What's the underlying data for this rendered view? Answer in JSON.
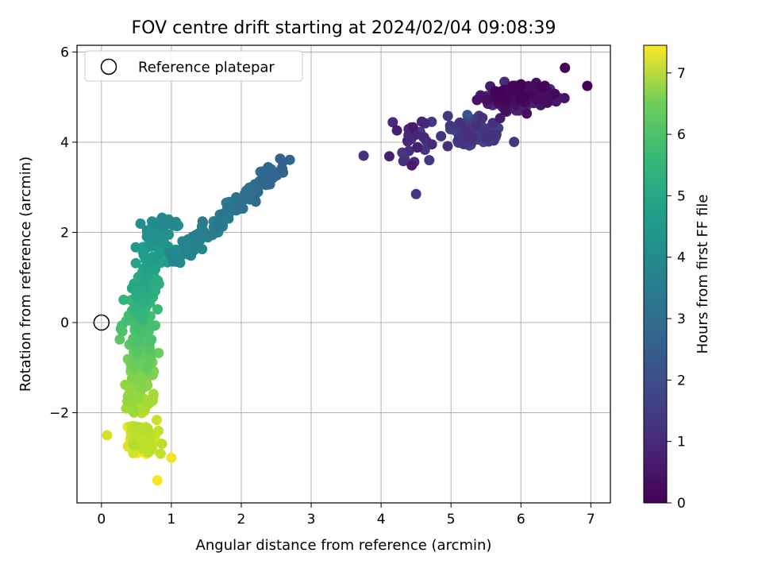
{
  "chart_data": {
    "type": "scatter",
    "title": "FOV centre drift starting at 2024/02/04 09:08:39",
    "xlabel": "Angular distance from reference (arcmin)",
    "ylabel": "Rotation from reference (arcmin)",
    "xlim": [
      -0.35,
      7.28
    ],
    "ylim": [
      -4.0,
      6.15
    ],
    "xticks": [
      0,
      1,
      2,
      3,
      4,
      5,
      6,
      7
    ],
    "xtick_labels": [
      "0",
      "1",
      "2",
      "3",
      "4",
      "5",
      "6",
      "7"
    ],
    "yticks": [
      -2,
      0,
      2,
      4,
      6
    ],
    "ytick_labels": [
      "−2",
      "0",
      "2",
      "4",
      "6"
    ],
    "grid": true,
    "legend": {
      "placement": "top-left",
      "entries": [
        "Reference platepar"
      ]
    },
    "reference_point": {
      "label": "Reference platepar",
      "x": 0.0,
      "y": 0.0
    },
    "colorbar": {
      "label": "Hours from first FF file",
      "range": [
        0,
        7.45
      ],
      "ticks": [
        0,
        1,
        2,
        3,
        4,
        5,
        6,
        7
      ],
      "tick_labels": [
        "0",
        "1",
        "2",
        "3",
        "4",
        "5",
        "6",
        "7"
      ],
      "colormap": "viridis"
    },
    "series_summary": [
      {
        "segment": "early drift cluster",
        "hours": [
          0.0,
          1.2
        ],
        "x_range": [
          4.9,
          6.95
        ],
        "y_range": [
          4.4,
          5.65
        ]
      },
      {
        "segment": "secondary cluster",
        "hours": [
          1.0,
          2.0
        ],
        "x_range": [
          4.8,
          5.8
        ],
        "y_range": [
          3.5,
          4.6
        ]
      },
      {
        "segment": "scattered outliers",
        "hours": [
          0.5,
          1.5
        ],
        "x_range": [
          3.75,
          5.0
        ],
        "y_range": [
          2.8,
          4.6
        ]
      },
      {
        "segment": "diagonal band",
        "hours": [
          2.3,
          3.6
        ],
        "x_range": [
          1.0,
          2.7
        ],
        "y_range": [
          1.3,
          3.6
        ]
      },
      {
        "segment": "curved descent",
        "hours": [
          3.6,
          6.6
        ],
        "x_range": [
          0.1,
          1.0
        ],
        "y_range": [
          -2.0,
          2.3
        ]
      },
      {
        "segment": "final cluster",
        "hours": [
          6.6,
          7.45
        ],
        "x_range": [
          0.0,
          1.0
        ],
        "y_range": [
          -3.5,
          -2.0
        ]
      }
    ]
  }
}
